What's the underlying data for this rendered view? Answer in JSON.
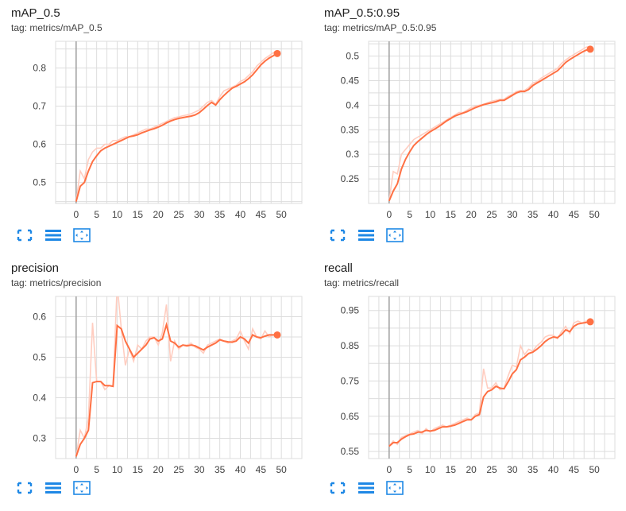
{
  "colors": {
    "smoothed": "#ff7043",
    "raw": "#ffcdc0",
    "grid": "#dddddd",
    "axis": "#9e9e9e",
    "toolbar": "#1e88e5"
  },
  "toolbar_icons": [
    "fit-domain-icon",
    "toggle-log-scale-icon",
    "expand-chart-icon"
  ],
  "charts": [
    {
      "id": "map05",
      "title": "mAP_0.5",
      "tag": "tag: metrics/mAP_0.5",
      "chart_data": {
        "type": "line",
        "x_ticks": [
          0,
          5,
          10,
          15,
          20,
          25,
          30,
          35,
          40,
          45,
          50
        ],
        "y_ticks": [
          0.5,
          0.6,
          0.7,
          0.8
        ],
        "y_tick_labels": [
          "0.5",
          "0.6",
          "0.7",
          "0.8"
        ],
        "xlim": [
          -5,
          55
        ],
        "ylim": [
          0.445,
          0.87
        ],
        "grid": true,
        "x": [
          0,
          1,
          2,
          3,
          4,
          5,
          6,
          7,
          8,
          9,
          10,
          11,
          12,
          13,
          14,
          15,
          16,
          17,
          18,
          19,
          20,
          21,
          22,
          23,
          24,
          25,
          26,
          27,
          28,
          29,
          30,
          31,
          32,
          33,
          34,
          35,
          36,
          37,
          38,
          39,
          40,
          41,
          42,
          43,
          44,
          45,
          46,
          47,
          48,
          49
        ],
        "smoothed": [
          0.45,
          0.49,
          0.5,
          0.53,
          0.555,
          0.57,
          0.583,
          0.59,
          0.595,
          0.6,
          0.605,
          0.61,
          0.615,
          0.62,
          0.622,
          0.625,
          0.63,
          0.634,
          0.638,
          0.641,
          0.645,
          0.65,
          0.656,
          0.661,
          0.665,
          0.668,
          0.67,
          0.672,
          0.674,
          0.677,
          0.683,
          0.692,
          0.702,
          0.71,
          0.703,
          0.717,
          0.728,
          0.738,
          0.747,
          0.752,
          0.758,
          0.764,
          0.772,
          0.782,
          0.795,
          0.808,
          0.818,
          0.826,
          0.832,
          0.838
        ],
        "raw": [
          0.45,
          0.53,
          0.51,
          0.56,
          0.58,
          0.59,
          0.59,
          0.6,
          0.6,
          0.61,
          0.61,
          0.615,
          0.62,
          0.62,
          0.625,
          0.63,
          0.635,
          0.64,
          0.64,
          0.645,
          0.65,
          0.655,
          0.66,
          0.665,
          0.67,
          0.672,
          0.675,
          0.677,
          0.68,
          0.685,
          0.69,
          0.7,
          0.71,
          0.715,
          0.705,
          0.725,
          0.74,
          0.745,
          0.75,
          0.755,
          0.765,
          0.77,
          0.78,
          0.79,
          0.805,
          0.815,
          0.825,
          0.832,
          0.84,
          0.845
        ]
      }
    },
    {
      "id": "map0595",
      "title": "mAP_0.5:0.95",
      "tag": "tag: metrics/mAP_0.5:0.95",
      "chart_data": {
        "type": "line",
        "x_ticks": [
          0,
          5,
          10,
          15,
          20,
          25,
          30,
          35,
          40,
          45,
          50
        ],
        "y_ticks": [
          0.25,
          0.3,
          0.35,
          0.4,
          0.45,
          0.5
        ],
        "y_tick_labels": [
          "0.25",
          "0.3",
          "0.35",
          "0.4",
          "0.45",
          "0.5"
        ],
        "xlim": [
          -5,
          55
        ],
        "ylim": [
          0.2,
          0.53
        ],
        "grid": true,
        "x": [
          0,
          1,
          2,
          3,
          4,
          5,
          6,
          7,
          8,
          9,
          10,
          11,
          12,
          13,
          14,
          15,
          16,
          17,
          18,
          19,
          20,
          21,
          22,
          23,
          24,
          25,
          26,
          27,
          28,
          29,
          30,
          31,
          32,
          33,
          34,
          35,
          36,
          37,
          38,
          39,
          40,
          41,
          42,
          43,
          44,
          45,
          46,
          47,
          48,
          49
        ],
        "smoothed": [
          0.205,
          0.225,
          0.24,
          0.27,
          0.29,
          0.305,
          0.318,
          0.326,
          0.333,
          0.34,
          0.346,
          0.351,
          0.356,
          0.362,
          0.368,
          0.373,
          0.378,
          0.381,
          0.384,
          0.387,
          0.391,
          0.395,
          0.398,
          0.401,
          0.403,
          0.405,
          0.407,
          0.41,
          0.41,
          0.415,
          0.42,
          0.425,
          0.428,
          0.428,
          0.432,
          0.44,
          0.445,
          0.45,
          0.455,
          0.46,
          0.465,
          0.47,
          0.478,
          0.487,
          0.493,
          0.498,
          0.503,
          0.508,
          0.512,
          0.514
        ],
        "raw": [
          0.205,
          0.265,
          0.26,
          0.3,
          0.31,
          0.32,
          0.33,
          0.335,
          0.34,
          0.345,
          0.35,
          0.355,
          0.36,
          0.365,
          0.37,
          0.375,
          0.38,
          0.385,
          0.385,
          0.39,
          0.395,
          0.398,
          0.4,
          0.402,
          0.405,
          0.408,
          0.41,
          0.412,
          0.412,
          0.418,
          0.422,
          0.428,
          0.43,
          0.43,
          0.436,
          0.445,
          0.448,
          0.455,
          0.46,
          0.465,
          0.47,
          0.475,
          0.485,
          0.492,
          0.498,
          0.503,
          0.508,
          0.513,
          0.518,
          0.52
        ]
      }
    },
    {
      "id": "precision",
      "title": "precision",
      "tag": "tag: metrics/precision",
      "chart_data": {
        "type": "line",
        "x_ticks": [
          0,
          5,
          10,
          15,
          20,
          25,
          30,
          35,
          40,
          45,
          50
        ],
        "y_ticks": [
          0.3,
          0.4,
          0.5,
          0.6
        ],
        "y_tick_labels": [
          "0.3",
          "0.4",
          "0.5",
          "0.6"
        ],
        "xlim": [
          -5,
          55
        ],
        "ylim": [
          0.25,
          0.65
        ],
        "grid": true,
        "x": [
          0,
          1,
          2,
          3,
          4,
          5,
          6,
          7,
          8,
          9,
          10,
          11,
          12,
          13,
          14,
          15,
          16,
          17,
          18,
          19,
          20,
          21,
          22,
          23,
          24,
          25,
          26,
          27,
          28,
          29,
          30,
          31,
          32,
          33,
          34,
          35,
          36,
          37,
          38,
          39,
          40,
          41,
          42,
          43,
          44,
          45,
          46,
          47,
          48,
          49
        ],
        "smoothed": [
          0.255,
          0.285,
          0.3,
          0.32,
          0.437,
          0.44,
          0.44,
          0.43,
          0.43,
          0.428,
          0.578,
          0.57,
          0.54,
          0.52,
          0.5,
          0.51,
          0.52,
          0.53,
          0.545,
          0.548,
          0.54,
          0.545,
          0.58,
          0.54,
          0.535,
          0.525,
          0.53,
          0.528,
          0.53,
          0.528,
          0.523,
          0.518,
          0.525,
          0.53,
          0.535,
          0.543,
          0.54,
          0.538,
          0.537,
          0.54,
          0.55,
          0.545,
          0.535,
          0.555,
          0.55,
          0.548,
          0.552,
          0.555,
          0.555,
          0.555
        ],
        "raw": [
          0.255,
          0.32,
          0.3,
          0.35,
          0.585,
          0.44,
          0.44,
          0.42,
          0.43,
          0.43,
          0.68,
          0.57,
          0.48,
          0.52,
          0.49,
          0.53,
          0.52,
          0.54,
          0.55,
          0.55,
          0.53,
          0.56,
          0.63,
          0.49,
          0.54,
          0.52,
          0.53,
          0.53,
          0.535,
          0.525,
          0.52,
          0.51,
          0.53,
          0.535,
          0.54,
          0.545,
          0.54,
          0.535,
          0.54,
          0.545,
          0.565,
          0.54,
          0.52,
          0.57,
          0.55,
          0.545,
          0.565,
          0.55,
          0.555,
          0.555
        ]
      }
    },
    {
      "id": "recall",
      "title": "recall",
      "tag": "tag: metrics/recall",
      "chart_data": {
        "type": "line",
        "x_ticks": [
          0,
          5,
          10,
          15,
          20,
          25,
          30,
          35,
          40,
          45,
          50
        ],
        "y_ticks": [
          0.55,
          0.65,
          0.75,
          0.85,
          0.95
        ],
        "y_tick_labels": [
          "0.55",
          "0.65",
          "0.75",
          "0.85",
          "0.95"
        ],
        "xlim": [
          -5,
          55
        ],
        "ylim": [
          0.53,
          0.99
        ],
        "grid": true,
        "x": [
          0,
          1,
          2,
          3,
          4,
          5,
          6,
          7,
          8,
          9,
          10,
          11,
          12,
          13,
          14,
          15,
          16,
          17,
          18,
          19,
          20,
          21,
          22,
          23,
          24,
          25,
          26,
          27,
          28,
          29,
          30,
          31,
          32,
          33,
          34,
          35,
          36,
          37,
          38,
          39,
          40,
          41,
          42,
          43,
          44,
          45,
          46,
          47,
          48,
          49
        ],
        "smoothed": [
          0.565,
          0.575,
          0.575,
          0.585,
          0.592,
          0.598,
          0.6,
          0.605,
          0.605,
          0.61,
          0.608,
          0.61,
          0.615,
          0.62,
          0.62,
          0.622,
          0.625,
          0.63,
          0.635,
          0.64,
          0.64,
          0.65,
          0.655,
          0.705,
          0.72,
          0.725,
          0.735,
          0.73,
          0.728,
          0.748,
          0.77,
          0.782,
          0.81,
          0.818,
          0.828,
          0.832,
          0.84,
          0.85,
          0.862,
          0.87,
          0.875,
          0.873,
          0.882,
          0.895,
          0.89,
          0.905,
          0.912,
          0.914,
          0.916,
          0.918
        ],
        "raw": [
          0.565,
          0.58,
          0.57,
          0.59,
          0.595,
          0.6,
          0.605,
          0.61,
          0.6,
          0.615,
          0.605,
          0.615,
          0.62,
          0.625,
          0.62,
          0.625,
          0.63,
          0.635,
          0.64,
          0.645,
          0.64,
          0.655,
          0.66,
          0.785,
          0.73,
          0.73,
          0.745,
          0.725,
          0.73,
          0.765,
          0.795,
          0.79,
          0.85,
          0.825,
          0.84,
          0.835,
          0.85,
          0.86,
          0.875,
          0.88,
          0.88,
          0.87,
          0.89,
          0.905,
          0.885,
          0.915,
          0.92,
          0.915,
          0.92,
          0.92
        ]
      }
    }
  ]
}
